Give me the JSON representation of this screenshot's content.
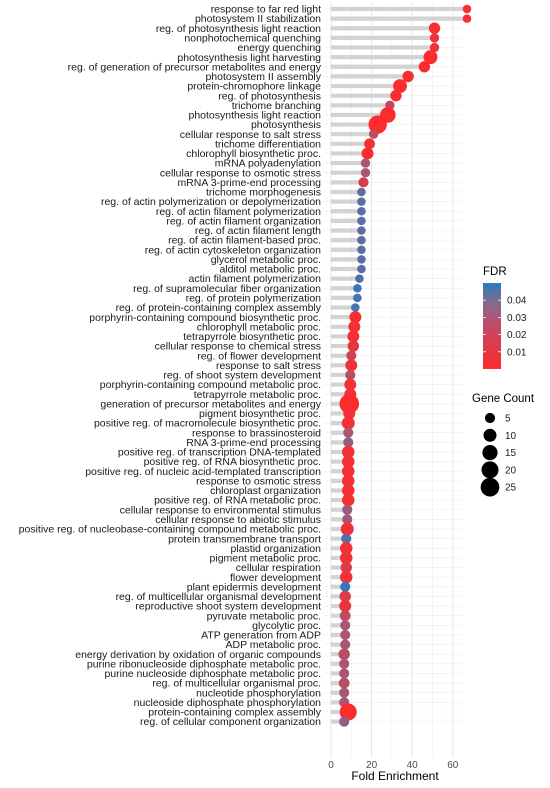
{
  "chart_data": {
    "type": "lollipop-dot",
    "xlabel": "Fold Enrichment",
    "xlim": [
      0,
      70
    ],
    "xticks": [
      0,
      20,
      40,
      60
    ],
    "grid": true,
    "legend_position": "right",
    "color_legend": {
      "title": "FDR",
      "ticks": [
        0.01,
        0.02,
        0.03,
        0.04
      ],
      "range": [
        0.0,
        0.05
      ],
      "low_color": "#ff2a2a",
      "high_color": "#2b7bbf"
    },
    "size_legend": {
      "title": "Gene Count",
      "values": [
        5,
        10,
        15,
        20,
        25
      ]
    },
    "terms": [
      {
        "term": "response to far red light",
        "fold": 67,
        "fdr": 0.003,
        "count": 3
      },
      {
        "term": "photosystem II stabilization",
        "fold": 67,
        "fdr": 0.003,
        "count": 3
      },
      {
        "term": "reg. of photosynthesis light reaction",
        "fold": 51,
        "fdr": 0.002,
        "count": 7
      },
      {
        "term": "nonphotochemical quenching",
        "fold": 51,
        "fdr": 0.005,
        "count": 4
      },
      {
        "term": "energy quenching",
        "fold": 51,
        "fdr": 0.005,
        "count": 4
      },
      {
        "term": "photosynthesis light harvesting",
        "fold": 49,
        "fdr": 0.001,
        "count": 12
      },
      {
        "term": "reg. of generation of precursor metabolites and energy",
        "fold": 46,
        "fdr": 0.002,
        "count": 7
      },
      {
        "term": "photosystem II assembly",
        "fold": 38,
        "fdr": 0.002,
        "count": 7
      },
      {
        "term": "protein-chromophore linkage",
        "fold": 34,
        "fdr": 0.001,
        "count": 12
      },
      {
        "term": "reg. of photosynthesis",
        "fold": 32,
        "fdr": 0.002,
        "count": 7
      },
      {
        "term": "trichome branching",
        "fold": 29,
        "fdr": 0.018,
        "count": 4
      },
      {
        "term": "photosynthesis light reaction",
        "fold": 28,
        "fdr": 0.001,
        "count": 16
      },
      {
        "term": "photosynthesis",
        "fold": 23,
        "fdr": 0.001,
        "count": 24
      },
      {
        "term": "cellular response to salt stress",
        "fold": 21,
        "fdr": 0.02,
        "count": 4
      },
      {
        "term": "trichome differentiation",
        "fold": 19,
        "fdr": 0.004,
        "count": 6
      },
      {
        "term": "chlorophyll biosynthetic proc.",
        "fold": 18,
        "fdr": 0.002,
        "count": 8
      },
      {
        "term": "mRNA polyadenylation",
        "fold": 17,
        "fdr": 0.025,
        "count": 4
      },
      {
        "term": "cellular response to osmotic stress",
        "fold": 17,
        "fdr": 0.025,
        "count": 4
      },
      {
        "term": "mRNA 3-prime-end processing",
        "fold": 16,
        "fdr": 0.012,
        "count": 5
      },
      {
        "term": "trichome morphogenesis",
        "fold": 15,
        "fdr": 0.04,
        "count": 3
      },
      {
        "term": "reg. of actin polymerization or depolymerization",
        "fold": 15,
        "fdr": 0.04,
        "count": 3
      },
      {
        "term": "reg. of actin filament polymerization",
        "fold": 15,
        "fdr": 0.04,
        "count": 3
      },
      {
        "term": "reg. of actin filament organization",
        "fold": 15,
        "fdr": 0.04,
        "count": 3
      },
      {
        "term": "reg. of actin filament length",
        "fold": 15,
        "fdr": 0.04,
        "count": 3
      },
      {
        "term": "reg. of actin filament-based proc.",
        "fold": 15,
        "fdr": 0.04,
        "count": 3
      },
      {
        "term": "reg. of actin cytoskeleton organization",
        "fold": 15,
        "fdr": 0.04,
        "count": 3
      },
      {
        "term": "glycerol metabolic proc.",
        "fold": 15,
        "fdr": 0.04,
        "count": 3
      },
      {
        "term": "alditol metabolic proc.",
        "fold": 15,
        "fdr": 0.04,
        "count": 3
      },
      {
        "term": "actin filament polymerization",
        "fold": 14,
        "fdr": 0.042,
        "count": 3
      },
      {
        "term": "reg. of supramolecular fiber organization",
        "fold": 13,
        "fdr": 0.048,
        "count": 3
      },
      {
        "term": "reg. of protein polymerization",
        "fold": 13,
        "fdr": 0.045,
        "count": 3
      },
      {
        "term": "reg. of protein-containing complex assembly",
        "fold": 12,
        "fdr": 0.045,
        "count": 3
      },
      {
        "term": "porphyrin-containing compound biosynthetic proc.",
        "fold": 12,
        "fdr": 0.003,
        "count": 8
      },
      {
        "term": "chlorophyll metabolic proc.",
        "fold": 11.5,
        "fdr": 0.003,
        "count": 8
      },
      {
        "term": "tetrapyrrole biosynthetic proc.",
        "fold": 11,
        "fdr": 0.003,
        "count": 8
      },
      {
        "term": "cellular response to chemical stress",
        "fold": 11,
        "fdr": 0.006,
        "count": 7
      },
      {
        "term": "reg. of flower development",
        "fold": 10,
        "fdr": 0.015,
        "count": 5
      },
      {
        "term": "response to salt stress",
        "fold": 10,
        "fdr": 0.004,
        "count": 8
      },
      {
        "term": "reg. of shoot system development",
        "fold": 9.5,
        "fdr": 0.02,
        "count": 5
      },
      {
        "term": "porphyrin-containing compound metabolic proc.",
        "fold": 9.5,
        "fdr": 0.004,
        "count": 8
      },
      {
        "term": "tetrapyrrole metabolic proc.",
        "fold": 9.5,
        "fdr": 0.004,
        "count": 8
      },
      {
        "term": "generation of precursor metabolites and energy",
        "fold": 9,
        "fdr": 0.001,
        "count": 28
      },
      {
        "term": "pigment biosynthetic proc.",
        "fold": 9,
        "fdr": 0.004,
        "count": 8
      },
      {
        "term": "positive reg. of macromolecule biosynthetic proc.",
        "fold": 8.5,
        "fdr": 0.003,
        "count": 10
      },
      {
        "term": "response to brassinosteroid",
        "fold": 8.5,
        "fdr": 0.025,
        "count": 5
      },
      {
        "term": "RNA 3-prime-end processing",
        "fold": 8.5,
        "fdr": 0.03,
        "count": 5
      },
      {
        "term": "positive reg. of transcription DNA-templated",
        "fold": 8.5,
        "fdr": 0.003,
        "count": 9
      },
      {
        "term": "positive reg. of RNA biosynthetic proc.",
        "fold": 8.5,
        "fdr": 0.003,
        "count": 9
      },
      {
        "term": "positive reg. of nucleic acid-templated transcription",
        "fold": 8.5,
        "fdr": 0.003,
        "count": 9
      },
      {
        "term": "response to osmotic stress",
        "fold": 8.5,
        "fdr": 0.003,
        "count": 9
      },
      {
        "term": "chloroplast organization",
        "fold": 8.5,
        "fdr": 0.003,
        "count": 9
      },
      {
        "term": "positive reg. of RNA metabolic proc.",
        "fold": 8.5,
        "fdr": 0.003,
        "count": 9
      },
      {
        "term": "cellular response to environmental stimulus",
        "fold": 8,
        "fdr": 0.028,
        "count": 5
      },
      {
        "term": "cellular response to abiotic stimulus",
        "fold": 8,
        "fdr": 0.028,
        "count": 5
      },
      {
        "term": "positive reg. of nucleobase-containing compound metabolic proc.",
        "fold": 8,
        "fdr": 0.003,
        "count": 10
      },
      {
        "term": "protein transmembrane transport",
        "fold": 7.5,
        "fdr": 0.042,
        "count": 5
      },
      {
        "term": "plastid organization",
        "fold": 7.5,
        "fdr": 0.004,
        "count": 9
      },
      {
        "term": "pigment metabolic proc.",
        "fold": 7.5,
        "fdr": 0.004,
        "count": 9
      },
      {
        "term": "cellular respiration",
        "fold": 7.5,
        "fdr": 0.01,
        "count": 7
      },
      {
        "term": "flower development",
        "fold": 7.5,
        "fdr": 0.004,
        "count": 9
      },
      {
        "term": "plant epidermis development",
        "fold": 7,
        "fdr": 0.048,
        "count": 5
      },
      {
        "term": "reg. of multicellular organismal development",
        "fold": 7,
        "fdr": 0.01,
        "count": 7
      },
      {
        "term": "reproductive shoot system development",
        "fold": 7,
        "fdr": 0.006,
        "count": 8
      },
      {
        "term": "pyruvate metabolic proc.",
        "fold": 7,
        "fdr": 0.018,
        "count": 6
      },
      {
        "term": "glycolytic proc.",
        "fold": 7,
        "fdr": 0.025,
        "count": 5
      },
      {
        "term": "ATP generation from ADP",
        "fold": 7,
        "fdr": 0.025,
        "count": 5
      },
      {
        "term": "ADP metabolic proc.",
        "fold": 7,
        "fdr": 0.025,
        "count": 5
      },
      {
        "term": "energy derivation by oxidation of organic compounds",
        "fold": 6.5,
        "fdr": 0.02,
        "count": 7
      },
      {
        "term": "purine ribonucleoside diphosphate metabolic proc.",
        "fold": 6.5,
        "fdr": 0.025,
        "count": 5
      },
      {
        "term": "purine nucleoside diphosphate metabolic proc.",
        "fold": 6.5,
        "fdr": 0.025,
        "count": 5
      },
      {
        "term": "reg. of multicellular organismal proc.",
        "fold": 6.5,
        "fdr": 0.02,
        "count": 6
      },
      {
        "term": "nucleotide phosphorylation",
        "fold": 6.5,
        "fdr": 0.025,
        "count": 5
      },
      {
        "term": "nucleoside diphosphate phosphorylation",
        "fold": 6.5,
        "fdr": 0.025,
        "count": 5
      },
      {
        "term": "protein-containing complex assembly",
        "fold": 8.5,
        "fdr": 0.001,
        "count": 20
      },
      {
        "term": "reg. of cellular component organization",
        "fold": 6.5,
        "fdr": 0.03,
        "count": 5
      }
    ]
  }
}
